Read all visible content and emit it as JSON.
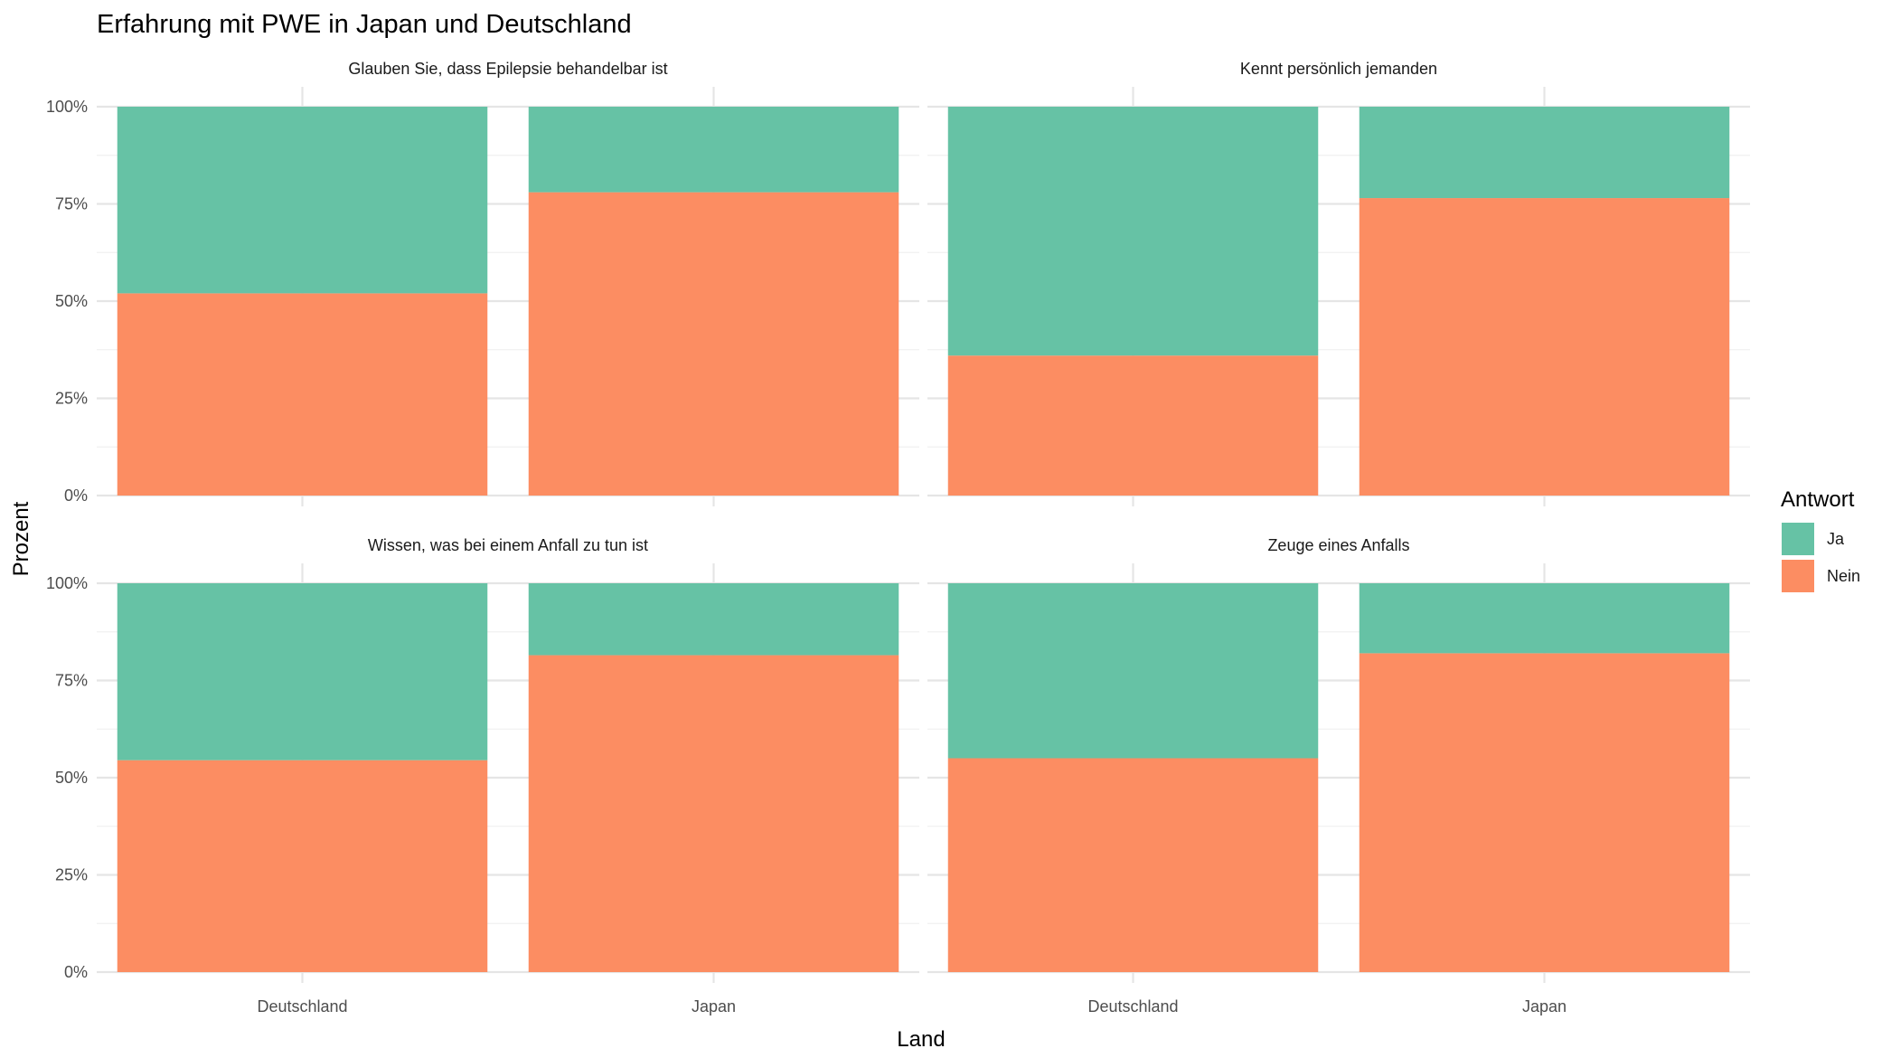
{
  "chart_data": {
    "type": "bar",
    "stacked": true,
    "normalized": true,
    "title": "Erfahrung mit PWE in Japan und Deutschland",
    "xlabel": "Land",
    "ylabel": "Prozent",
    "ylim": [
      0,
      1
    ],
    "yticks": [
      0,
      0.25,
      0.5,
      0.75,
      1
    ],
    "ytick_labels": [
      "0%",
      "25%",
      "50%",
      "75%",
      "100%"
    ],
    "grid": true,
    "categories": [
      "Deutschland",
      "Japan"
    ],
    "legend": {
      "title": "Antwort",
      "position": "right",
      "entries": [
        {
          "label": "Ja",
          "color": "#66c2a5"
        },
        {
          "label": "Nein",
          "color": "#fc8d62"
        }
      ]
    },
    "panels": [
      {
        "title": "Glauben Sie, dass Epilepsie behandelbar ist",
        "series": [
          {
            "name": "Nein",
            "values": [
              0.52,
              0.78
            ]
          },
          {
            "name": "Ja",
            "values": [
              0.48,
              0.22
            ]
          }
        ]
      },
      {
        "title": "Kennt persönlich jemanden",
        "series": [
          {
            "name": "Nein",
            "values": [
              0.36,
              0.765
            ]
          },
          {
            "name": "Ja",
            "values": [
              0.64,
              0.235
            ]
          }
        ]
      },
      {
        "title": "Wissen, was bei einem Anfall zu tun ist",
        "series": [
          {
            "name": "Nein",
            "values": [
              0.545,
              0.815
            ]
          },
          {
            "name": "Ja",
            "values": [
              0.455,
              0.185
            ]
          }
        ]
      },
      {
        "title": "Zeuge eines Anfalls",
        "series": [
          {
            "name": "Nein",
            "values": [
              0.55,
              0.82
            ]
          },
          {
            "name": "Ja",
            "values": [
              0.45,
              0.18
            ]
          }
        ]
      }
    ]
  }
}
